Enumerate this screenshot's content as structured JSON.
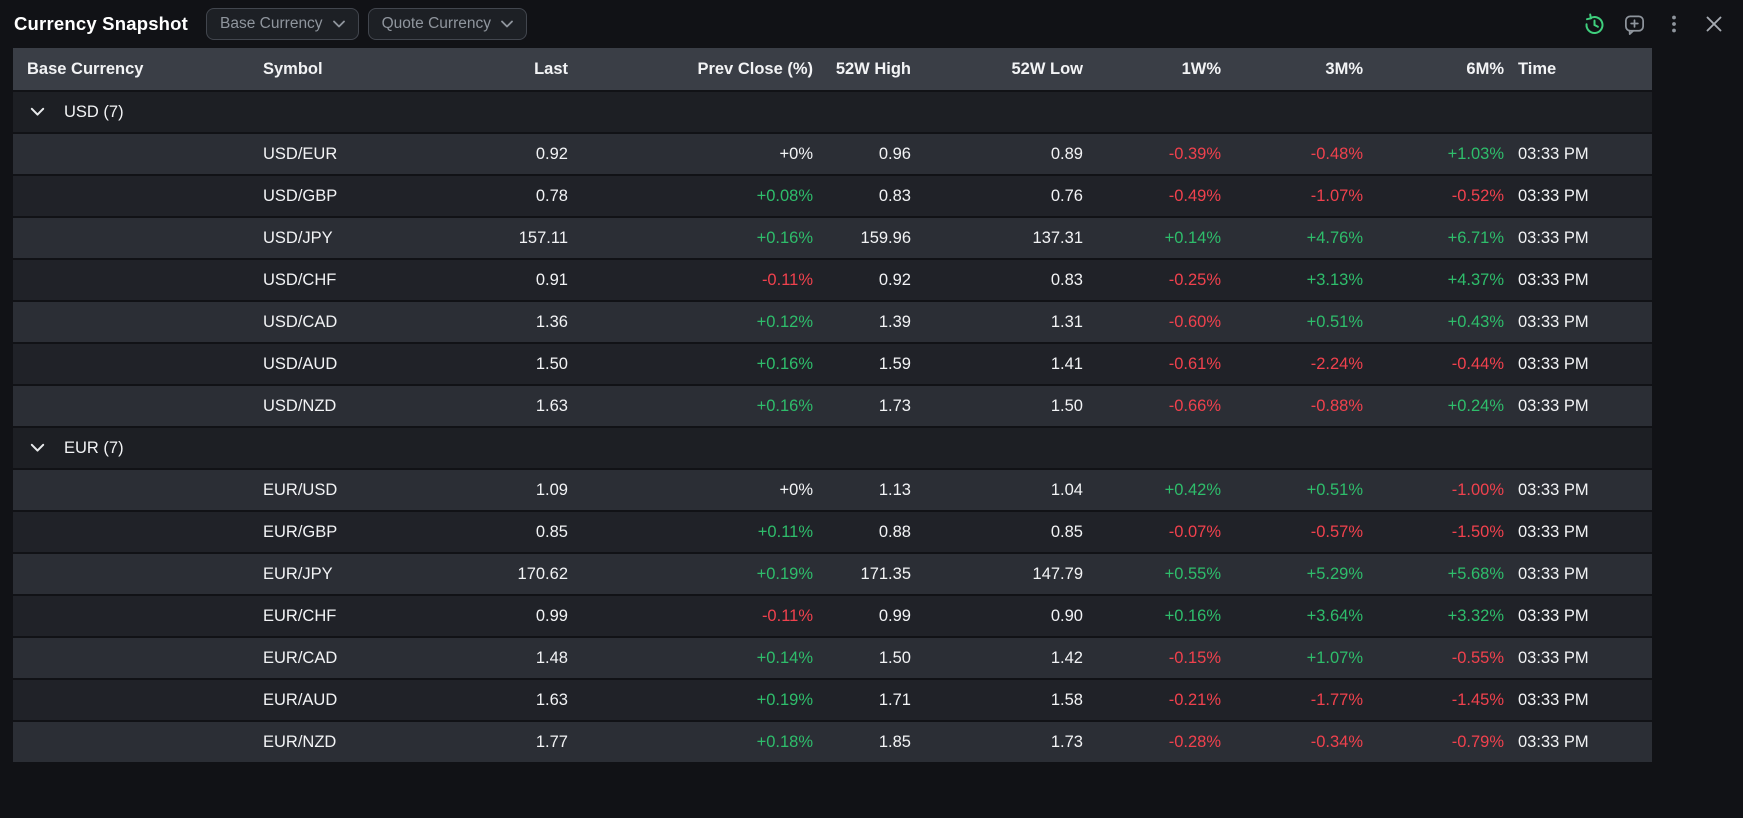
{
  "widget": {
    "title": "Currency Snapshot",
    "filters": [
      {
        "label": "Base Currency"
      },
      {
        "label": "Quote Currency"
      }
    ],
    "toolbar_icons": [
      "history-clock-icon",
      "comment-plus-icon",
      "kebab-menu-icon",
      "close-icon"
    ]
  },
  "colors": {
    "positive_text": "#2ebd6b",
    "negative_text": "#f0414d",
    "neutral_text": "#f2f3f5",
    "accent_green_icon": "#3fcf7d",
    "header_row_bg": "#3a3e46",
    "row_light_bg": "#2b2e35",
    "row_dark_bg": "#202228",
    "group_row_bg": "#1d1f24",
    "page_bg": "#111216"
  },
  "table": {
    "columns": [
      "Base Currency",
      "Symbol",
      "Last",
      "Prev Close (%)",
      "52W High",
      "52W Low",
      "1W%",
      "3M%",
      "6M%",
      "Time"
    ],
    "groups": [
      {
        "display": "USD (7)",
        "rows": [
          [
            "USD/EUR",
            "0.92",
            "+0%",
            "0.96",
            "0.89",
            "-0.39%",
            "-0.48%",
            "+1.03%",
            "03:33 PM"
          ],
          [
            "USD/GBP",
            "0.78",
            "+0.08%",
            "0.83",
            "0.76",
            "-0.49%",
            "-1.07%",
            "-0.52%",
            "03:33 PM"
          ],
          [
            "USD/JPY",
            "157.11",
            "+0.16%",
            "159.96",
            "137.31",
            "+0.14%",
            "+4.76%",
            "+6.71%",
            "03:33 PM"
          ],
          [
            "USD/CHF",
            "0.91",
            "-0.11%",
            "0.92",
            "0.83",
            "-0.25%",
            "+3.13%",
            "+4.37%",
            "03:33 PM"
          ],
          [
            "USD/CAD",
            "1.36",
            "+0.12%",
            "1.39",
            "1.31",
            "-0.60%",
            "+0.51%",
            "+0.43%",
            "03:33 PM"
          ],
          [
            "USD/AUD",
            "1.50",
            "+0.16%",
            "1.59",
            "1.41",
            "-0.61%",
            "-2.24%",
            "-0.44%",
            "03:33 PM"
          ],
          [
            "USD/NZD",
            "1.63",
            "+0.16%",
            "1.73",
            "1.50",
            "-0.66%",
            "-0.88%",
            "+0.24%",
            "03:33 PM"
          ]
        ]
      },
      {
        "display": "EUR (7)",
        "rows": [
          [
            "EUR/USD",
            "1.09",
            "+0%",
            "1.13",
            "1.04",
            "+0.42%",
            "+0.51%",
            "-1.00%",
            "03:33 PM"
          ],
          [
            "EUR/GBP",
            "0.85",
            "+0.11%",
            "0.88",
            "0.85",
            "-0.07%",
            "-0.57%",
            "-1.50%",
            "03:33 PM"
          ],
          [
            "EUR/JPY",
            "170.62",
            "+0.19%",
            "171.35",
            "147.79",
            "+0.55%",
            "+5.29%",
            "+5.68%",
            "03:33 PM"
          ],
          [
            "EUR/CHF",
            "0.99",
            "-0.11%",
            "0.99",
            "0.90",
            "+0.16%",
            "+3.64%",
            "+3.32%",
            "03:33 PM"
          ],
          [
            "EUR/CAD",
            "1.48",
            "+0.14%",
            "1.50",
            "1.42",
            "-0.15%",
            "+1.07%",
            "-0.55%",
            "03:33 PM"
          ],
          [
            "EUR/AUD",
            "1.63",
            "+0.19%",
            "1.71",
            "1.58",
            "-0.21%",
            "-1.77%",
            "-1.45%",
            "03:33 PM"
          ],
          [
            "EUR/NZD",
            "1.77",
            "+0.18%",
            "1.85",
            "1.73",
            "-0.28%",
            "-0.34%",
            "-0.79%",
            "03:33 PM"
          ]
        ]
      }
    ]
  }
}
